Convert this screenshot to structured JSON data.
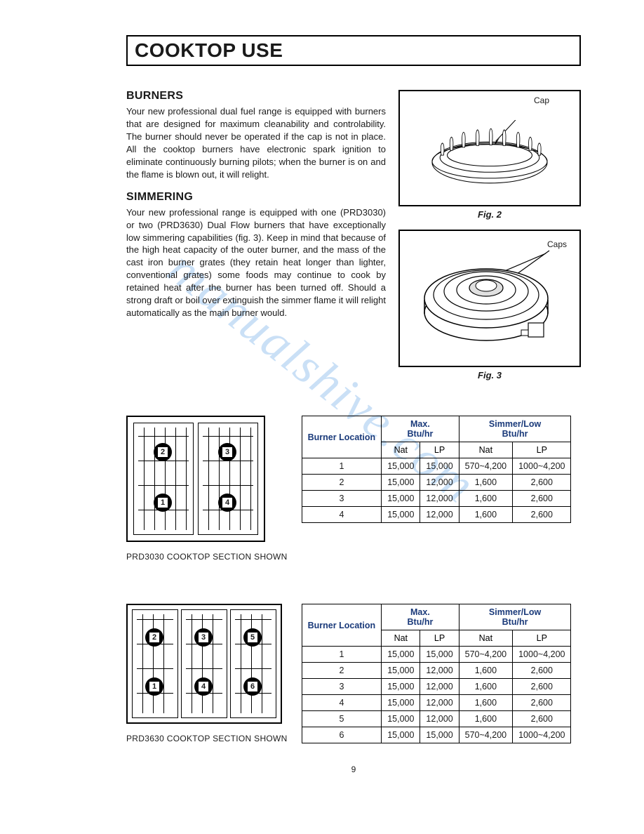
{
  "page": {
    "title": "COOKTOP USE",
    "page_number": "9",
    "watermark": "manualshive.com"
  },
  "sections": {
    "burners": {
      "heading": "BURNERS",
      "body": "Your new professional dual fuel range is equipped with burners that are designed for maximum cleanability and controlability. The burner should never be operated if the cap is not in place. All the cooktop burners have electronic spark ignition to eliminate continuously burning pilots; when the burner is on and the flame is blown out, it will relight."
    },
    "simmering": {
      "heading": "SIMMERING",
      "body": "Your new professional range is equipped with one (PRD3030) or two (PRD3630) Dual Flow burners that have exceptionally low simmering capabilities (fig. 3). Keep in mind that because of the high heat capacity of the outer burner, and the mass of the cast iron burner grates (they retain heat longer than lighter, conventional grates) some foods may continue to cook by retained heat after the burner has been turned off. Should a strong draft or boil over extinguish the simmer flame it will relight automatically as the main burner would."
    }
  },
  "figures": {
    "fig2": {
      "label": "Cap",
      "caption": "Fig. 2"
    },
    "fig3": {
      "label": "Caps",
      "caption": "Fig. 3"
    }
  },
  "cooktop1": {
    "caption": "PRD3030 COOKTOP SECTION SHOWN",
    "burners": [
      "1",
      "2",
      "3",
      "4"
    ],
    "table": {
      "headers": {
        "loc": "Burner Location",
        "max": "Max.\nBtu/hr",
        "sim": "Simmer/Low\nBtu/hr",
        "nat": "Nat",
        "lp": "LP"
      },
      "rows": [
        {
          "loc": "1",
          "max_nat": "15,000",
          "max_lp": "15,000",
          "sim_nat": "570~4,200",
          "sim_lp": "1000~4,200"
        },
        {
          "loc": "2",
          "max_nat": "15,000",
          "max_lp": "12,000",
          "sim_nat": "1,600",
          "sim_lp": "2,600"
        },
        {
          "loc": "3",
          "max_nat": "15,000",
          "max_lp": "12,000",
          "sim_nat": "1,600",
          "sim_lp": "2,600"
        },
        {
          "loc": "4",
          "max_nat": "15,000",
          "max_lp": "12,000",
          "sim_nat": "1,600",
          "sim_lp": "2,600"
        }
      ]
    }
  },
  "cooktop2": {
    "caption": "PRD3630 COOKTOP SECTION SHOWN",
    "burners": [
      "1",
      "2",
      "3",
      "4",
      "5",
      "6"
    ],
    "table": {
      "headers": {
        "loc": "Burner Location",
        "max": "Max.\nBtu/hr",
        "sim": "Simmer/Low\nBtu/hr",
        "nat": "Nat",
        "lp": "LP"
      },
      "rows": [
        {
          "loc": "1",
          "max_nat": "15,000",
          "max_lp": "15,000",
          "sim_nat": "570~4,200",
          "sim_lp": "1000~4,200"
        },
        {
          "loc": "2",
          "max_nat": "15,000",
          "max_lp": "12,000",
          "sim_nat": "1,600",
          "sim_lp": "2,600"
        },
        {
          "loc": "3",
          "max_nat": "15,000",
          "max_lp": "12,000",
          "sim_nat": "1,600",
          "sim_lp": "2,600"
        },
        {
          "loc": "4",
          "max_nat": "15,000",
          "max_lp": "12,000",
          "sim_nat": "1,600",
          "sim_lp": "2,600"
        },
        {
          "loc": "5",
          "max_nat": "15,000",
          "max_lp": "12,000",
          "sim_nat": "1,600",
          "sim_lp": "2,600"
        },
        {
          "loc": "6",
          "max_nat": "15,000",
          "max_lp": "15,000",
          "sim_nat": "570~4,200",
          "sim_lp": "1000~4,200"
        }
      ]
    }
  },
  "style": {
    "header_color": "#1a3a7a",
    "watermark_color": "#6aa9e8"
  }
}
